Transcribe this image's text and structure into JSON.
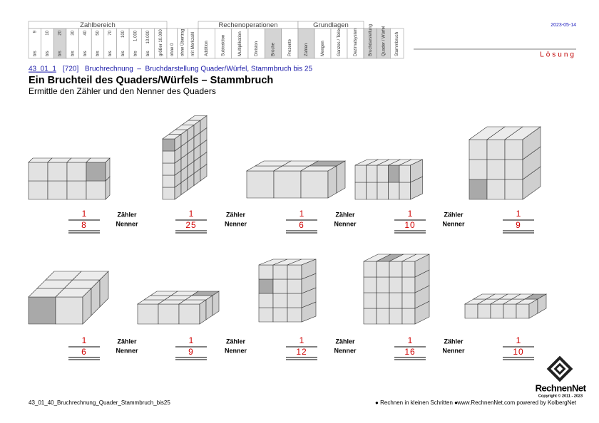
{
  "header": {
    "sections": [
      {
        "title": "Zahlbereich",
        "columns": [
          {
            "top": "9",
            "bottom": "bis"
          },
          {
            "top": "10",
            "bottom": "bis"
          },
          {
            "top": "20",
            "bottom": "bis",
            "shaded": true
          },
          {
            "top": "30",
            "bottom": "bis"
          },
          {
            "top": "40",
            "bottom": "bis"
          },
          {
            "top": "50",
            "bottom": "bis"
          },
          {
            "top": "70",
            "bottom": "bis"
          },
          {
            "top": "100",
            "bottom": "bis"
          },
          {
            "top": "1.000",
            "bottom": "bis"
          },
          {
            "top": "10.000",
            "bottom": "bis"
          },
          {
            "bottom": "größer 10.000"
          }
        ]
      },
      {
        "columns": [
          {
            "bottom": "ohne 0"
          },
          {
            "bottom": "ohne Übertrag"
          },
          {
            "bottom": "mit Merkzahl"
          }
        ]
      },
      {
        "title": "Rechenoperationen",
        "columns": [
          {
            "bottom": "Addition"
          },
          {
            "bottom": "Subtraktion"
          },
          {
            "bottom": "Multiplikation"
          },
          {
            "bottom": "Division"
          },
          {
            "bottom": "Brüche",
            "shaded": true
          },
          {
            "bottom": "Prozente"
          }
        ]
      },
      {
        "title": "Grundlagen",
        "columns": [
          {
            "bottom": "Zahlen",
            "shaded": true
          },
          {
            "bottom": "Mengen"
          },
          {
            "bottom": "Ganzes / Teile"
          },
          {
            "bottom": "Dezimalsystem"
          }
        ]
      },
      {
        "columns": [
          {
            "bottom": "Bruchdarstellung",
            "shaded": true
          },
          {
            "bottom": "Quader / Würfel",
            "shaded": true
          },
          {
            "bottom": "Stammbruch"
          }
        ]
      }
    ],
    "date": "2023-05-14",
    "solution": "Lösung"
  },
  "worksheet": {
    "code": "43_01_1",
    "number": "[720]",
    "topic": "Bruchrechnung  –  Bruchdarstellung Quader/Würfel, Stammbruch bis 25",
    "title": "Ein Bruchteil des Quaders/Würfels – Stammbruch",
    "instruction": "Ermittle den Zähler und den Nenner des Quaders",
    "labels": {
      "numerator": "Zähler",
      "denominator": "Nenner"
    },
    "problems": [
      {
        "numerator": 1,
        "denominator": 8
      },
      {
        "numerator": 1,
        "denominator": 25
      },
      {
        "numerator": 1,
        "denominator": 6
      },
      {
        "numerator": 1,
        "denominator": 10
      },
      {
        "numerator": 1,
        "denominator": 9
      },
      {
        "numerator": 1,
        "denominator": 6
      },
      {
        "numerator": 1,
        "denominator": 9
      },
      {
        "numerator": 1,
        "denominator": 12
      },
      {
        "numerator": 1,
        "denominator": 16
      },
      {
        "numerator": 1,
        "denominator": 10
      }
    ]
  },
  "footer": {
    "file": "43_01_40_Bruchrechnung_Quader_Stammbruch_bis25",
    "motto": "● Rechnen in kleinen Schritten ●",
    "site": "www.RechnenNet.com powered by KolbergNet",
    "brand": "RechnenNet",
    "copyright": "Copyright © 2011 - 2023"
  }
}
